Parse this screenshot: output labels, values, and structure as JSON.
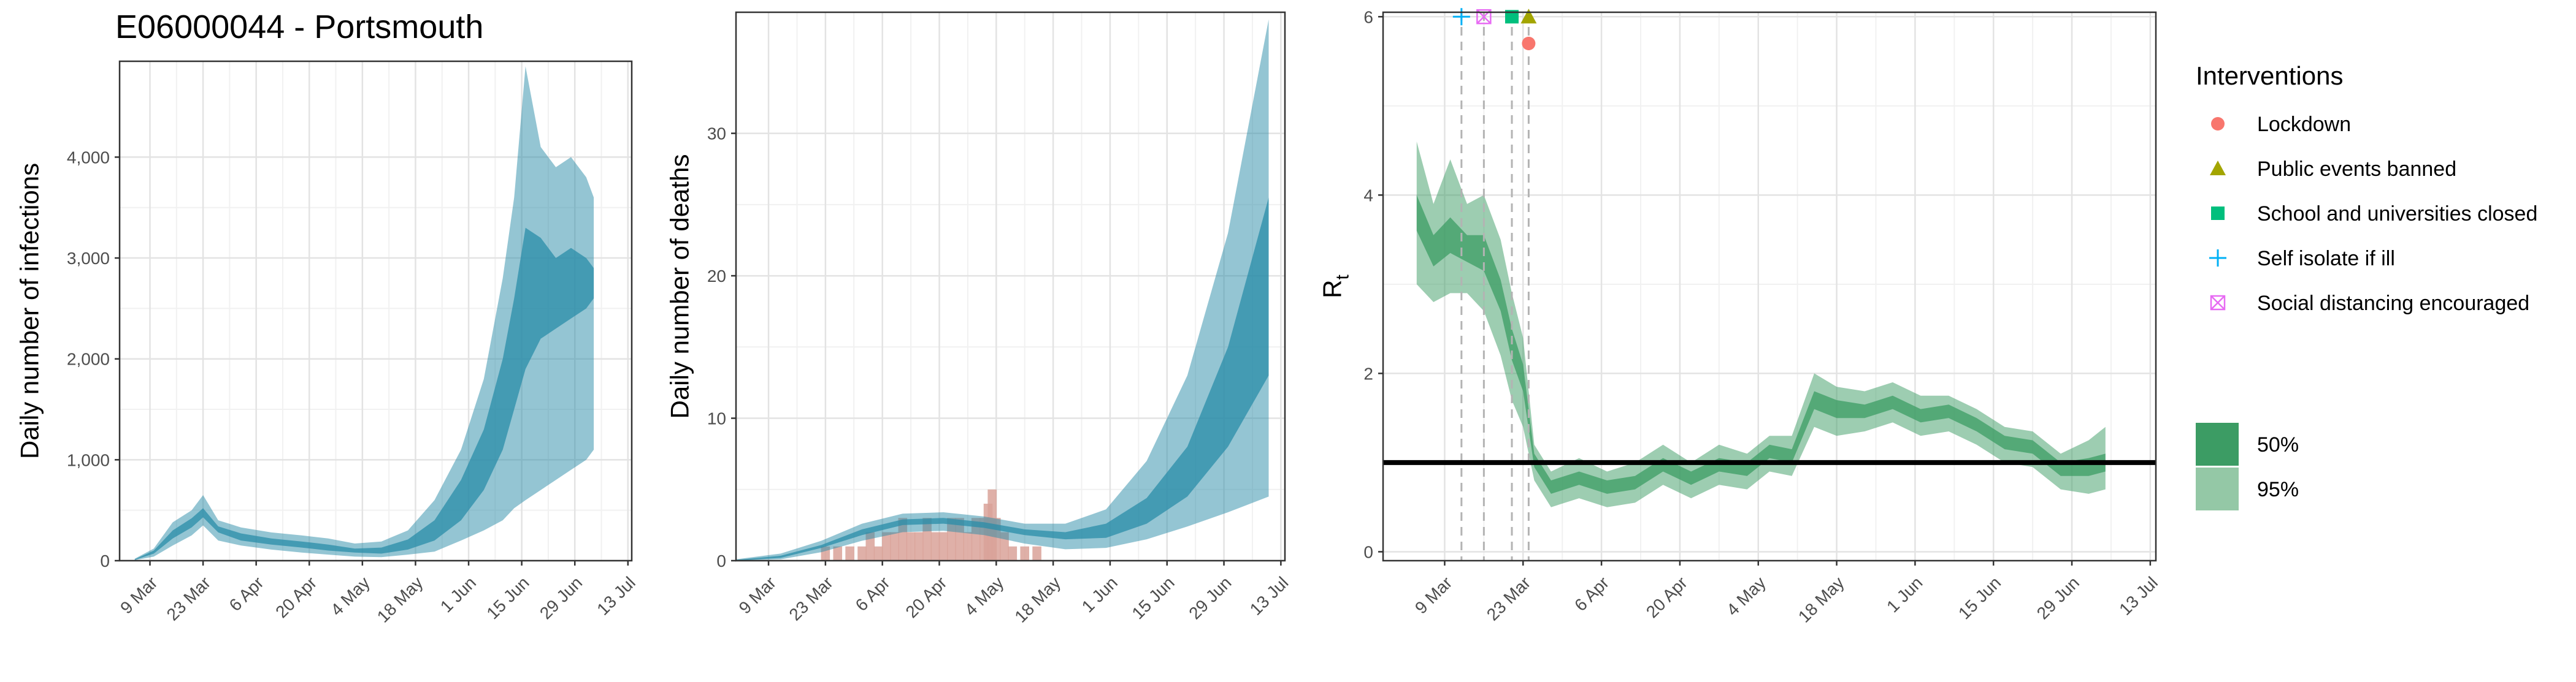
{
  "title": "E06000044 - Portsmouth",
  "chart_data": [
    {
      "id": "infections",
      "type": "area",
      "ylabel": "Daily number of infections",
      "xlabel": "",
      "xlim": [
        "2020-03-01",
        "2020-07-14"
      ],
      "ylim": [
        0,
        4950
      ],
      "y_ticks": [
        0,
        1000,
        2000,
        3000,
        4000
      ],
      "y_tick_labels": [
        "0",
        "1,000",
        "2,000",
        "3,000",
        "4,000"
      ],
      "x_ticks": [
        "2020-03-09",
        "2020-03-23",
        "2020-04-06",
        "2020-04-20",
        "2020-05-04",
        "2020-05-18",
        "2020-06-01",
        "2020-06-15",
        "2020-06-29",
        "2020-07-13"
      ],
      "x_tick_labels": [
        "9 Mar",
        "23 Mar",
        "6 Apr",
        "20 Apr",
        "4 May",
        "18 May",
        "1 Jun",
        "15 Jun",
        "29 Jun",
        "13 Jul"
      ],
      "grid": true,
      "color": "#2a8ca8",
      "series": [
        {
          "band": "95%",
          "x": [
            "2020-03-05",
            "2020-03-10",
            "2020-03-15",
            "2020-03-20",
            "2020-03-23",
            "2020-03-27",
            "2020-04-02",
            "2020-04-10",
            "2020-04-18",
            "2020-04-25",
            "2020-05-02",
            "2020-05-09",
            "2020-05-16",
            "2020-05-23",
            "2020-05-30",
            "2020-06-05",
            "2020-06-10",
            "2020-06-13",
            "2020-06-16",
            "2020-06-20",
            "2020-06-24",
            "2020-06-28",
            "2020-07-02",
            "2020-07-04"
          ],
          "lower": [
            5,
            40,
            150,
            250,
            350,
            200,
            150,
            110,
            80,
            60,
            40,
            35,
            60,
            90,
            200,
            300,
            400,
            520,
            600,
            700,
            800,
            900,
            1000,
            1100
          ],
          "upper": [
            20,
            120,
            380,
            500,
            650,
            400,
            330,
            280,
            250,
            220,
            170,
            190,
            300,
            600,
            1100,
            1800,
            2800,
            3600,
            4900,
            4100,
            3900,
            4000,
            3800,
            3600
          ]
        },
        {
          "band": "50%",
          "x": [
            "2020-03-05",
            "2020-03-10",
            "2020-03-15",
            "2020-03-20",
            "2020-03-23",
            "2020-03-27",
            "2020-04-02",
            "2020-04-10",
            "2020-04-18",
            "2020-04-25",
            "2020-05-02",
            "2020-05-09",
            "2020-05-16",
            "2020-05-23",
            "2020-05-30",
            "2020-06-05",
            "2020-06-10",
            "2020-06-13",
            "2020-06-16",
            "2020-06-20",
            "2020-06-24",
            "2020-06-28",
            "2020-07-02",
            "2020-07-04"
          ],
          "lower": [
            8,
            70,
            220,
            330,
            430,
            280,
            200,
            160,
            130,
            100,
            80,
            70,
            110,
            200,
            400,
            700,
            1100,
            1500,
            1900,
            2200,
            2300,
            2400,
            2500,
            2600
          ],
          "upper": [
            14,
            100,
            300,
            420,
            520,
            340,
            270,
            220,
            190,
            160,
            120,
            130,
            210,
            400,
            800,
            1300,
            2000,
            2600,
            3300,
            3200,
            3000,
            3100,
            3000,
            2900
          ]
        }
      ]
    },
    {
      "id": "deaths",
      "type": "area",
      "ylabel": "Daily number of deaths",
      "xlabel": "",
      "xlim": [
        "2020-03-01",
        "2020-07-14"
      ],
      "ylim": [
        0,
        38.5
      ],
      "y_ticks": [
        0,
        10,
        20,
        30
      ],
      "y_tick_labels": [
        "0",
        "10",
        "20",
        "30"
      ],
      "x_ticks": [
        "2020-03-09",
        "2020-03-23",
        "2020-04-06",
        "2020-04-20",
        "2020-05-04",
        "2020-05-18",
        "2020-06-01",
        "2020-06-15",
        "2020-06-29",
        "2020-07-13"
      ],
      "x_tick_labels": [
        "9 Mar",
        "23 Mar",
        "6 Apr",
        "20 Apr",
        "4 May",
        "18 May",
        "1 Jun",
        "15 Jun",
        "29 Jun",
        "13 Jul"
      ],
      "grid": true,
      "color": "#2a8ca8",
      "bar_color": "#d9a299",
      "series": [
        {
          "band": "95%",
          "x": [
            "2020-03-01",
            "2020-03-12",
            "2020-03-22",
            "2020-04-01",
            "2020-04-11",
            "2020-04-21",
            "2020-05-01",
            "2020-05-11",
            "2020-05-21",
            "2020-05-31",
            "2020-06-10",
            "2020-06-20",
            "2020-06-30",
            "2020-07-10"
          ],
          "lower": [
            0,
            0.1,
            0.6,
            1.4,
            2.0,
            2.1,
            1.8,
            1.2,
            0.8,
            0.9,
            1.5,
            2.4,
            3.4,
            4.5
          ],
          "upper": [
            0.1,
            0.5,
            1.4,
            2.6,
            3.3,
            3.4,
            3.1,
            2.6,
            2.6,
            3.6,
            7.0,
            13.0,
            23.0,
            38.0
          ]
        },
        {
          "band": "50%",
          "x": [
            "2020-03-01",
            "2020-03-12",
            "2020-03-22",
            "2020-04-01",
            "2020-04-11",
            "2020-04-21",
            "2020-05-01",
            "2020-05-11",
            "2020-05-21",
            "2020-05-31",
            "2020-06-10",
            "2020-06-20",
            "2020-06-30",
            "2020-07-10"
          ],
          "lower": [
            0,
            0.2,
            0.9,
            1.8,
            2.5,
            2.6,
            2.3,
            1.8,
            1.5,
            1.6,
            2.6,
            4.5,
            8.0,
            13.0
          ],
          "upper": [
            0.05,
            0.35,
            1.1,
            2.2,
            2.9,
            3.0,
            2.7,
            2.2,
            2.0,
            2.6,
            4.4,
            8.0,
            15.0,
            25.5
          ]
        }
      ],
      "bars": {
        "x": [
          "2020-03-23",
          "2020-03-26",
          "2020-03-29",
          "2020-04-01",
          "2020-04-03",
          "2020-04-05",
          "2020-04-07",
          "2020-04-09",
          "2020-04-11",
          "2020-04-13",
          "2020-04-15",
          "2020-04-17",
          "2020-04-19",
          "2020-04-21",
          "2020-04-23",
          "2020-04-25",
          "2020-04-27",
          "2020-04-29",
          "2020-05-01",
          "2020-05-02",
          "2020-05-03",
          "2020-05-04",
          "2020-05-06",
          "2020-05-08",
          "2020-05-11",
          "2020-05-14"
        ],
        "values": [
          1,
          1,
          1,
          1,
          2,
          1,
          2,
          2,
          3,
          2,
          2,
          3,
          2,
          2,
          3,
          3,
          2,
          3,
          3,
          4,
          5,
          3,
          2,
          1,
          1,
          1
        ]
      }
    },
    {
      "id": "rt",
      "type": "area",
      "ylabel": "R",
      "ylabel_subscript": "t",
      "xlabel": "",
      "xlim": [
        "2020-02-27",
        "2020-07-14"
      ],
      "ylim": [
        -0.1,
        6.05
      ],
      "y_ticks": [
        0,
        2,
        4,
        6
      ],
      "y_tick_labels": [
        "0",
        "2",
        "4",
        "6"
      ],
      "x_ticks": [
        "2020-03-09",
        "2020-03-23",
        "2020-04-06",
        "2020-04-20",
        "2020-05-04",
        "2020-05-18",
        "2020-06-01",
        "2020-06-15",
        "2020-06-29",
        "2020-07-13"
      ],
      "x_tick_labels": [
        "9 Mar",
        "23 Mar",
        "6 Apr",
        "20 Apr",
        "4 May",
        "18 May",
        "1 Jun",
        "15 Jun",
        "29 Jun",
        "13 Jul"
      ],
      "grid": true,
      "color": "#3c9c64",
      "reference_line": 1,
      "series": [
        {
          "band": "95%",
          "x": [
            "2020-03-04",
            "2020-03-07",
            "2020-03-10",
            "2020-03-13",
            "2020-03-16",
            "2020-03-19",
            "2020-03-21",
            "2020-03-23",
            "2020-03-25",
            "2020-03-28",
            "2020-04-02",
            "2020-04-07",
            "2020-04-12",
            "2020-04-17",
            "2020-04-22",
            "2020-04-27",
            "2020-05-02",
            "2020-05-06",
            "2020-05-10",
            "2020-05-14",
            "2020-05-18",
            "2020-05-23",
            "2020-05-28",
            "2020-06-02",
            "2020-06-07",
            "2020-06-12",
            "2020-06-17",
            "2020-06-22",
            "2020-06-27",
            "2020-07-02",
            "2020-07-05"
          ],
          "lower": [
            3.0,
            2.8,
            2.9,
            2.9,
            2.7,
            2.2,
            1.7,
            1.4,
            0.8,
            0.5,
            0.6,
            0.5,
            0.55,
            0.75,
            0.6,
            0.75,
            0.7,
            0.9,
            0.85,
            1.4,
            1.3,
            1.35,
            1.45,
            1.3,
            1.35,
            1.2,
            1.0,
            0.95,
            0.7,
            0.65,
            0.7
          ],
          "upper": [
            4.6,
            3.9,
            4.4,
            3.9,
            4.0,
            3.5,
            2.9,
            2.4,
            1.2,
            0.9,
            1.05,
            0.9,
            1.0,
            1.2,
            1.0,
            1.2,
            1.1,
            1.3,
            1.3,
            2.0,
            1.85,
            1.8,
            1.9,
            1.75,
            1.75,
            1.6,
            1.4,
            1.35,
            1.1,
            1.25,
            1.4
          ]
        },
        {
          "band": "50%",
          "x": [
            "2020-03-04",
            "2020-03-07",
            "2020-03-10",
            "2020-03-13",
            "2020-03-16",
            "2020-03-19",
            "2020-03-21",
            "2020-03-23",
            "2020-03-25",
            "2020-03-28",
            "2020-04-02",
            "2020-04-07",
            "2020-04-12",
            "2020-04-17",
            "2020-04-22",
            "2020-04-27",
            "2020-05-02",
            "2020-05-06",
            "2020-05-10",
            "2020-05-14",
            "2020-05-18",
            "2020-05-23",
            "2020-05-28",
            "2020-06-02",
            "2020-06-07",
            "2020-06-12",
            "2020-06-17",
            "2020-06-22",
            "2020-06-27",
            "2020-07-02",
            "2020-07-05"
          ],
          "lower": [
            3.6,
            3.2,
            3.35,
            3.25,
            3.15,
            2.7,
            2.15,
            1.8,
            0.95,
            0.65,
            0.75,
            0.65,
            0.7,
            0.9,
            0.75,
            0.9,
            0.85,
            1.05,
            1.0,
            1.6,
            1.5,
            1.5,
            1.6,
            1.45,
            1.5,
            1.35,
            1.15,
            1.1,
            0.85,
            0.85,
            0.9
          ],
          "upper": [
            4.0,
            3.55,
            3.75,
            3.55,
            3.55,
            3.05,
            2.5,
            2.1,
            1.1,
            0.8,
            0.9,
            0.8,
            0.85,
            1.05,
            0.9,
            1.05,
            1.0,
            1.2,
            1.15,
            1.8,
            1.7,
            1.65,
            1.75,
            1.6,
            1.65,
            1.5,
            1.3,
            1.25,
            1.0,
            1.05,
            1.1
          ]
        }
      ],
      "interventions": [
        {
          "label": "Lockdown",
          "date": "2020-03-24",
          "y": 5.7,
          "shape": "circle",
          "color": "#f8766d"
        },
        {
          "label": "Public events banned",
          "date": "2020-03-24",
          "y": 6.0,
          "shape": "triangle",
          "color": "#a3a500"
        },
        {
          "label": "School and universities closed",
          "date": "2020-03-21",
          "y": 6.0,
          "shape": "square",
          "color": "#00bf7d"
        },
        {
          "label": "Self isolate if ill",
          "date": "2020-03-12",
          "y": 6.0,
          "shape": "plus",
          "color": "#00b0f6"
        },
        {
          "label": "Social distancing encouraged",
          "date": "2020-03-16",
          "y": 6.0,
          "shape": "boxcross",
          "color": "#e76bf3"
        }
      ]
    }
  ],
  "legend": {
    "interventions_title": "Interventions",
    "interventions": [
      {
        "label": "Lockdown",
        "shape": "circle",
        "color": "#f8766d"
      },
      {
        "label": "Public events banned",
        "shape": "triangle",
        "color": "#a3a500"
      },
      {
        "label": "School and universities closed",
        "shape": "square",
        "color": "#00bf7d"
      },
      {
        "label": "Self isolate if ill",
        "shape": "plus",
        "color": "#00b0f6"
      },
      {
        "label": "Social distancing encouraged",
        "shape": "boxcross",
        "color": "#e76bf3"
      }
    ],
    "bands": [
      {
        "label": "50%",
        "color": "#3c9c64"
      },
      {
        "label": "95%",
        "color": "#94c8a6"
      }
    ]
  }
}
